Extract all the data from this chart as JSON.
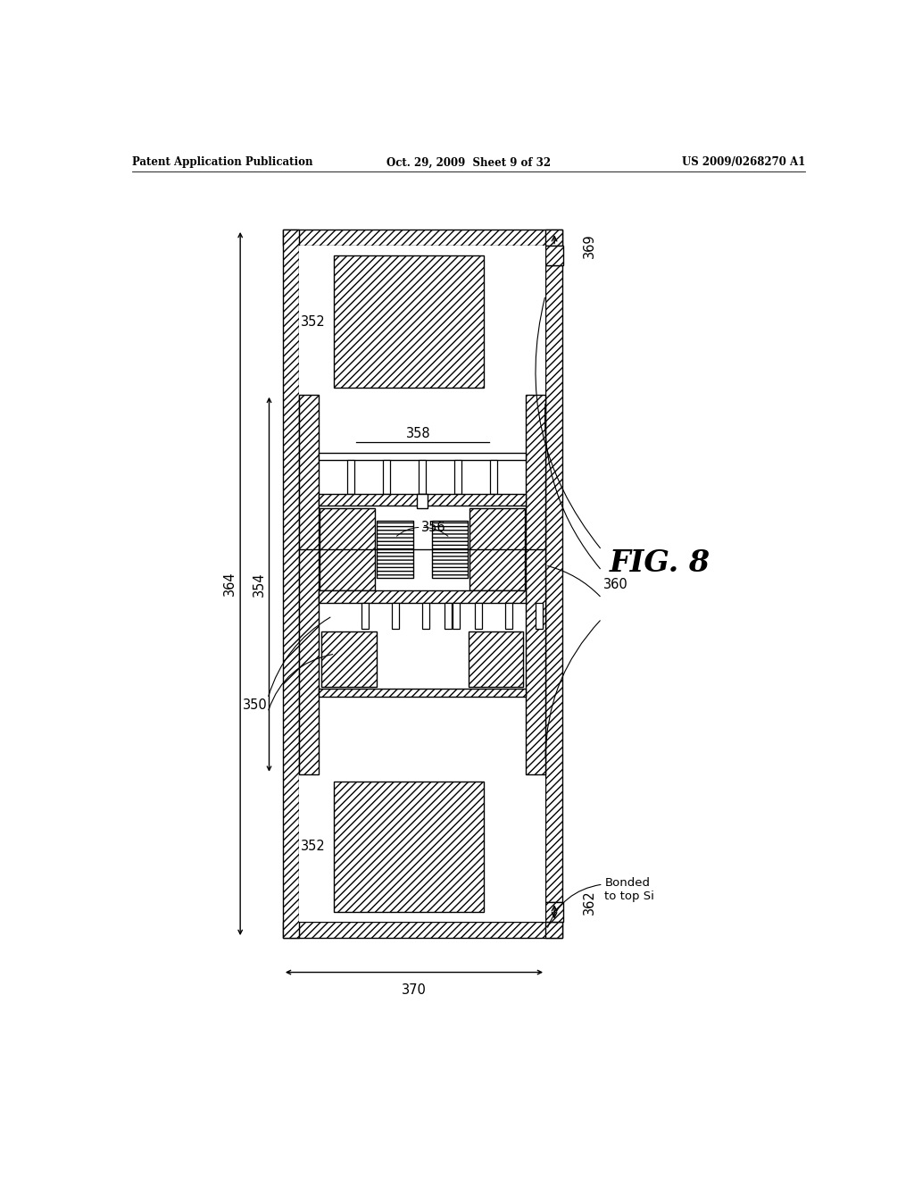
{
  "header_left": "Patent Application Publication",
  "header_mid": "Oct. 29, 2009  Sheet 9 of 32",
  "header_right": "US 2009/0268270 A1",
  "fig_label": "FIG. 8",
  "bg_color": "#ffffff",
  "line_color": "#000000",
  "labels": {
    "352_top": "352",
    "352_bot": "352",
    "354": "354",
    "356": "356",
    "358": "358",
    "360": "360",
    "362": "362",
    "364": "364",
    "369": "369",
    "370": "370",
    "350": "350",
    "bonded": "Bonded\nto top Si"
  }
}
